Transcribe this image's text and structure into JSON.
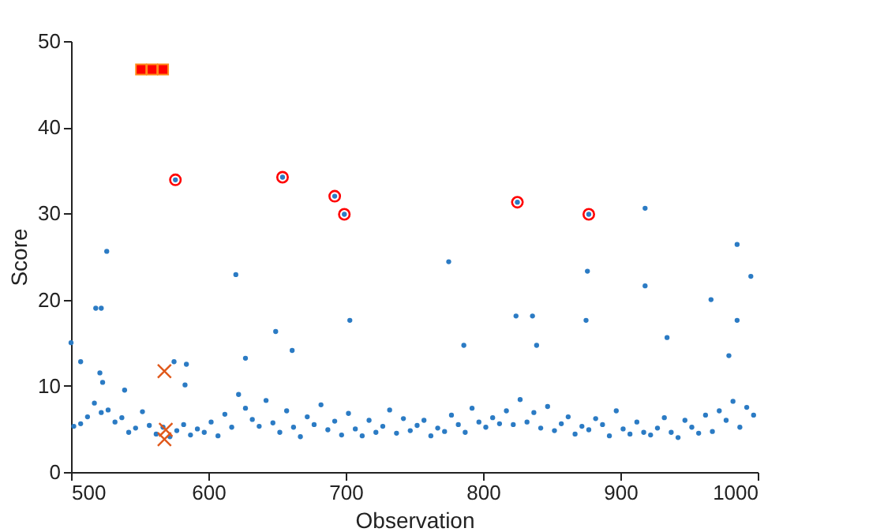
{
  "chart_data": {
    "type": "scatter",
    "xlabel": "Observation",
    "ylabel": "Score",
    "xlim": [
      500,
      1000
    ],
    "ylim": [
      0,
      50
    ],
    "xticks": [
      500,
      600,
      700,
      800,
      900,
      1000
    ],
    "yticks": [
      0,
      10,
      20,
      30,
      40,
      50
    ],
    "grid": false,
    "series": [
      {
        "color": "#2b7bc4",
        "marker": "circle",
        "x": [
          500,
          507,
          518,
          522,
          526,
          521,
          523,
          539,
          575,
          584,
          583,
          620,
          627,
          649,
          661,
          703,
          775,
          786,
          824,
          836,
          839,
          876,
          875,
          918,
          918,
          934,
          966,
          985,
          995,
          985,
          979,
          576,
          654,
          692,
          699,
          825,
          877,
          502,
          507,
          512,
          517,
          522,
          527,
          532,
          537,
          542,
          547,
          552,
          557,
          562,
          567,
          572,
          577,
          582,
          587,
          592,
          597,
          602,
          607,
          612,
          617,
          622,
          627,
          632,
          637,
          642,
          647,
          652,
          657,
          662,
          667,
          672,
          677,
          682,
          687,
          692,
          697,
          702,
          707,
          712,
          717,
          722,
          727,
          732,
          737,
          742,
          747,
          752,
          757,
          762,
          767,
          772,
          777,
          782,
          787,
          792,
          797,
          802,
          807,
          812,
          817,
          822,
          827,
          832,
          837,
          842,
          847,
          852,
          857,
          862,
          867,
          872,
          877,
          882,
          887,
          892,
          897,
          902,
          907,
          912,
          917,
          922,
          927,
          932,
          937,
          942,
          947,
          952,
          957,
          962,
          967,
          972,
          977,
          982,
          987,
          992,
          997
        ],
        "values": [
          15.0,
          12.8,
          19.0,
          19.0,
          25.6,
          11.5,
          10.4,
          9.5,
          12.8,
          12.5,
          10.1,
          22.9,
          13.2,
          16.3,
          14.1,
          17.6,
          24.4,
          14.7,
          18.1,
          18.1,
          14.7,
          23.3,
          17.6,
          30.6,
          21.6,
          15.6,
          20.0,
          26.4,
          22.7,
          17.6,
          13.5,
          33.9,
          34.2,
          32.0,
          29.9,
          31.3,
          29.9,
          5.3,
          5.6,
          6.4,
          8.0,
          6.9,
          7.2,
          5.8,
          6.3,
          4.6,
          5.1,
          7.0,
          5.4,
          4.4,
          5.2,
          4.1,
          4.8,
          5.5,
          4.3,
          5.0,
          4.6,
          5.8,
          4.2,
          6.7,
          5.2,
          9.0,
          7.4,
          6.1,
          5.3,
          8.3,
          5.7,
          4.6,
          7.1,
          5.2,
          4.1,
          6.4,
          5.5,
          7.8,
          4.9,
          5.9,
          4.3,
          6.8,
          5.0,
          4.2,
          6.0,
          4.6,
          5.3,
          7.2,
          4.5,
          6.2,
          4.8,
          5.4,
          6.0,
          4.2,
          5.1,
          4.7,
          6.6,
          5.5,
          4.6,
          7.4,
          5.8,
          5.2,
          6.3,
          5.6,
          7.1,
          5.5,
          8.4,
          5.8,
          6.9,
          5.1,
          7.6,
          4.8,
          5.6,
          6.4,
          4.4,
          5.3,
          4.9,
          6.2,
          5.5,
          4.2,
          7.1,
          5.0,
          4.4,
          5.8,
          4.6,
          4.3,
          5.1,
          6.3,
          4.6,
          4.0,
          6.0,
          5.2,
          4.5,
          6.6,
          4.7,
          7.1,
          6.0,
          8.2,
          5.2,
          7.5,
          6.6
        ]
      },
      {
        "color": "#ff0000",
        "marker": "square",
        "x": [
          551,
          559,
          567
        ],
        "values": [
          46.7,
          46.7,
          46.7
        ]
      },
      {
        "color": "#ff0000",
        "marker": "circle",
        "x": [
          576,
          654,
          692,
          699,
          825,
          877
        ],
        "values": [
          33.9,
          34.2,
          32.0,
          29.9,
          31.3,
          29.9
        ]
      },
      {
        "color": "#e0581a",
        "marker": "cross",
        "x": [
          568,
          569,
          568
        ],
        "values": [
          11.7,
          4.9,
          3.8
        ]
      }
    ]
  }
}
